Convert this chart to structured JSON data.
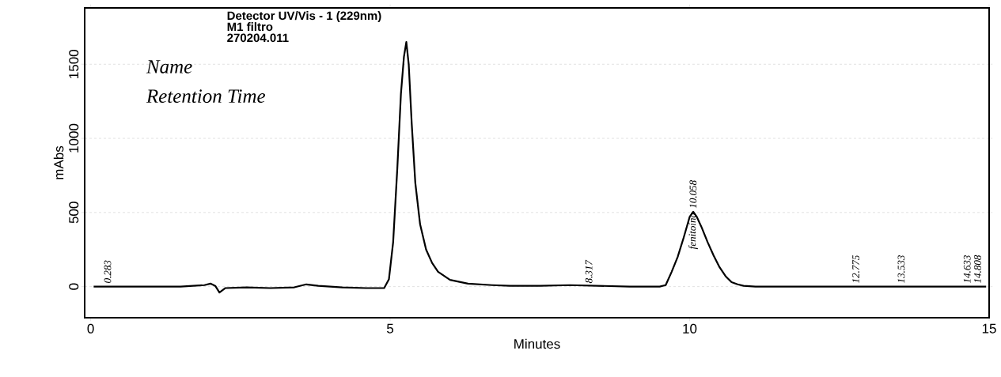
{
  "chart_data": {
    "type": "line",
    "title": "Detector UV/Vis - 1 (229nm)",
    "subtitle": "M1 filtro",
    "xlabel": "Minutes",
    "ylabel": "mAbs",
    "x": [
      0.05,
      0.5,
      1.0,
      1.5,
      1.9,
      2.0,
      2.08,
      2.15,
      2.25,
      2.6,
      3.0,
      3.4,
      3.6,
      3.8,
      4.2,
      4.6,
      4.9,
      4.98,
      5.05,
      5.12,
      5.18,
      5.23,
      5.27,
      5.31,
      5.36,
      5.42,
      5.5,
      5.6,
      5.7,
      5.8,
      6.0,
      6.3,
      6.7,
      7.0,
      7.5,
      8.0,
      8.5,
      9.0,
      9.5,
      9.6,
      9.7,
      9.8,
      9.9,
      10.0,
      10.06,
      10.12,
      10.2,
      10.3,
      10.4,
      10.5,
      10.6,
      10.7,
      10.8,
      10.9,
      11.1,
      11.5,
      12.0,
      13.0,
      14.0,
      14.95
    ],
    "series": [
      {
        "color": "#000000",
        "values": [
          0,
          0,
          0,
          0,
          10,
          20,
          5,
          -40,
          -10,
          -5,
          -10,
          -5,
          15,
          5,
          -5,
          -10,
          -10,
          50,
          300,
          800,
          1300,
          1550,
          1650,
          1500,
          1100,
          700,
          420,
          250,
          160,
          100,
          45,
          20,
          10,
          5,
          5,
          10,
          5,
          0,
          0,
          10,
          100,
          200,
          330,
          470,
          505,
          470,
          400,
          300,
          210,
          130,
          70,
          30,
          15,
          5,
          0,
          0,
          0,
          0,
          0,
          0
        ]
      }
    ],
    "xlim": [
      -0.1,
      15
    ],
    "ylim": [
      -210,
      1880
    ],
    "xticks": [
      0,
      5,
      10,
      15
    ],
    "yticks": [
      0,
      500,
      1000,
      1500
    ],
    "grid": "y",
    "line_style": "solid",
    "marker": "none",
    "annotations": [
      "270204.011",
      "Name",
      "Retention Time",
      {
        "text": "0.283",
        "x": 0.283,
        "y": 0
      },
      {
        "text": "8.317",
        "x": 8.317,
        "y": 0
      },
      {
        "text": "10.058",
        "x": 10.058,
        "y": 505
      },
      {
        "text": "fenitoína",
        "x": 10.058,
        "y": 505
      },
      {
        "text": "12.775",
        "x": 12.775,
        "y": 0
      },
      {
        "text": "13.533",
        "x": 13.533,
        "y": 0
      },
      {
        "text": "14.633",
        "x": 14.633,
        "y": 0
      },
      {
        "text": "14.808",
        "x": 14.808,
        "y": 0
      }
    ]
  }
}
